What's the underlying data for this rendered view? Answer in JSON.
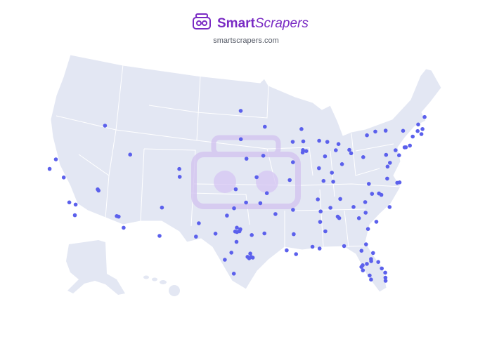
{
  "header": {
    "brand_first": "Smart",
    "brand_second": "Scrapers",
    "url": "smartscrapers.com"
  },
  "marker_color": "#5b60ec",
  "locations": [
    [
      -116.2,
      43.6
    ],
    [
      -111.89,
      40.76
    ],
    [
      -121.49,
      38.58
    ],
    [
      -121.89,
      37.34
    ],
    [
      -119.79,
      36.74
    ],
    [
      -115.14,
      36.17
    ],
    [
      -115.0,
      36.04
    ],
    [
      -118.24,
      34.05
    ],
    [
      -117.4,
      33.95
    ],
    [
      -117.16,
      32.72
    ],
    [
      -112.07,
      33.45
    ],
    [
      -111.83,
      33.42
    ],
    [
      -110.97,
      32.22
    ],
    [
      -106.65,
      35.08
    ],
    [
      -104.99,
      39.74
    ],
    [
      -104.82,
      38.83
    ],
    [
      -96.79,
      46.88
    ],
    [
      -96.73,
      43.54
    ],
    [
      -93.27,
      44.98
    ],
    [
      -89.4,
      43.07
    ],
    [
      -87.91,
      43.04
    ],
    [
      -88.0,
      44.5
    ],
    [
      -93.61,
      41.59
    ],
    [
      -95.93,
      41.26
    ],
    [
      -94.58,
      39.1
    ],
    [
      -97.34,
      37.69
    ],
    [
      -95.99,
      36.15
    ],
    [
      -97.52,
      35.47
    ],
    [
      -98.39,
      34.6
    ],
    [
      -96.8,
      32.78
    ],
    [
      -97.33,
      32.75
    ],
    [
      -96.7,
      33.02
    ],
    [
      -97.1,
      32.7
    ],
    [
      -97.13,
      33.21
    ],
    [
      -95.3,
      32.35
    ],
    [
      -97.74,
      30.27
    ],
    [
      -98.49,
      29.42
    ],
    [
      -95.37,
      29.76
    ],
    [
      -95.82,
      29.79
    ],
    [
      -95.63,
      29.62
    ],
    [
      -95.2,
      29.69
    ],
    [
      -95.49,
      30.17
    ],
    [
      -97.4,
      27.8
    ],
    [
      -101.85,
      33.58
    ],
    [
      -106.49,
      31.76
    ],
    [
      -102.08,
      32.0
    ],
    [
      -99.73,
      32.45
    ],
    [
      -97.15,
      31.55
    ],
    [
      -93.75,
      32.52
    ],
    [
      -91.15,
      30.45
    ],
    [
      -90.07,
      29.95
    ],
    [
      -92.29,
      34.75
    ],
    [
      -94.16,
      36.06
    ],
    [
      -93.29,
      37.21
    ],
    [
      -90.2,
      38.63
    ],
    [
      -87.63,
      41.88
    ],
    [
      -88.15,
      41.75
    ],
    [
      -88.08,
      42.03
    ],
    [
      -89.59,
      40.69
    ],
    [
      -86.16,
      39.77
    ],
    [
      -85.14,
      41.08
    ],
    [
      -83.05,
      42.33
    ],
    [
      -85.67,
      42.96
    ],
    [
      -84.55,
      42.73
    ],
    [
      -83.54,
      41.65
    ],
    [
      -83.0,
      39.96
    ],
    [
      -84.51,
      39.1
    ],
    [
      -81.69,
      41.5
    ],
    [
      -81.52,
      41.08
    ],
    [
      -79.99,
      40.44
    ],
    [
      -85.76,
      38.25
    ],
    [
      -84.5,
      38.04
    ],
    [
      -86.78,
      36.16
    ],
    [
      -90.05,
      35.15
    ],
    [
      -83.92,
      35.96
    ],
    [
      -85.31,
      35.05
    ],
    [
      -86.8,
      33.52
    ],
    [
      -86.59,
      34.73
    ],
    [
      -86.3,
      32.37
    ],
    [
      -88.04,
      30.69
    ],
    [
      -90.18,
      32.3
    ],
    [
      -84.39,
      33.75
    ],
    [
      -84.55,
      33.95
    ],
    [
      -81.1,
      32.08
    ],
    [
      -81.97,
      33.47
    ],
    [
      -81.03,
      34.0
    ],
    [
      -79.93,
      32.78
    ],
    [
      -82.4,
      34.85
    ],
    [
      -80.84,
      35.23
    ],
    [
      -78.64,
      35.78
    ],
    [
      -79.79,
      36.07
    ],
    [
      -78.9,
      35.99
    ],
    [
      -77.94,
      34.23
    ],
    [
      -77.44,
      37.54
    ],
    [
      -75.98,
      36.85
    ],
    [
      -76.29,
      36.85
    ],
    [
      -79.94,
      37.27
    ],
    [
      -77.04,
      38.9
    ],
    [
      -76.61,
      39.29
    ],
    [
      -75.17,
      39.95
    ],
    [
      -76.88,
      40.27
    ],
    [
      -75.47,
      40.6
    ],
    [
      -74.0,
      40.71
    ],
    [
      -74.17,
      40.73
    ],
    [
      -73.4,
      40.8
    ],
    [
      -73.76,
      42.65
    ],
    [
      -76.15,
      43.05
    ],
    [
      -78.88,
      42.89
    ],
    [
      -77.61,
      43.16
    ],
    [
      -72.68,
      41.76
    ],
    [
      -71.41,
      41.82
    ],
    [
      -71.06,
      42.36
    ],
    [
      -71.8,
      42.26
    ],
    [
      -71.45,
      42.99
    ],
    [
      -70.26,
      43.66
    ],
    [
      -81.66,
      30.33
    ],
    [
      -84.28,
      30.44
    ],
    [
      -87.22,
      30.42
    ],
    [
      -82.32,
      29.65
    ],
    [
      -81.38,
      28.54
    ],
    [
      -82.46,
      27.95
    ],
    [
      -82.64,
      27.77
    ],
    [
      -82.53,
      27.34
    ],
    [
      -81.87,
      26.64
    ],
    [
      -81.79,
      26.14
    ],
    [
      -80.05,
      26.72
    ],
    [
      -80.14,
      26.12
    ],
    [
      -80.19,
      25.76
    ],
    [
      -80.35,
      27.27
    ],
    [
      -80.61,
      28.08
    ],
    [
      -81.02,
      29.21
    ],
    [
      -81.95,
      28.04
    ],
    [
      -81.41,
      28.29
    ]
  ]
}
